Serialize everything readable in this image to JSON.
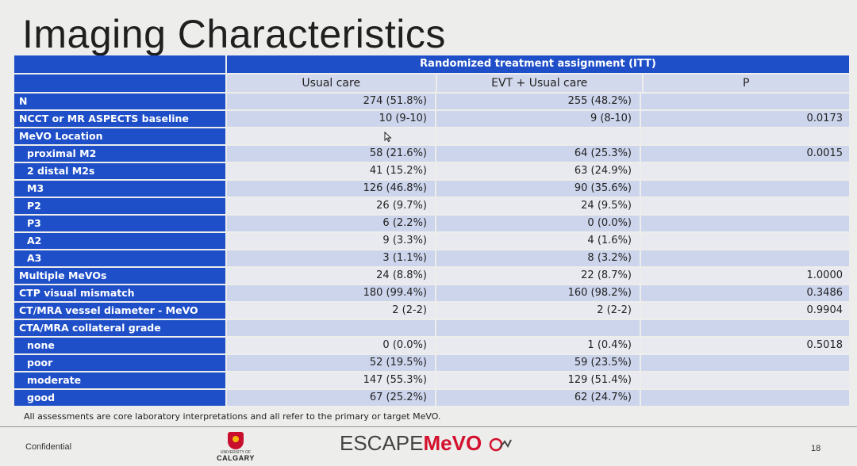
{
  "title": "Imaging Characteristics",
  "table": {
    "group_header": "Randomized treatment assignment (ITT)",
    "columns": [
      "Usual care",
      "EVT + Usual care",
      "P"
    ],
    "rows": [
      {
        "label": "N",
        "usual": "274 (51.8%)",
        "evt": "255 (48.2%)",
        "p": "",
        "indent": false,
        "style": "shaded"
      },
      {
        "label": "NCCT or MR ASPECTS baseline",
        "usual": "10 (9-10)",
        "evt": "9 (8-10)",
        "p": "0.0173",
        "indent": false,
        "style": "shaded"
      },
      {
        "label": "MeVO Location",
        "usual": "",
        "evt": "",
        "p": "",
        "indent": false,
        "style": "plain"
      },
      {
        "label": "proximal M2",
        "usual": "58 (21.6%)",
        "evt": "64 (25.3%)",
        "p": "0.0015",
        "indent": true,
        "style": "shaded"
      },
      {
        "label": "2 distal M2s",
        "usual": "41 (15.2%)",
        "evt": "63 (24.9%)",
        "p": "",
        "indent": true,
        "style": "plain"
      },
      {
        "label": "M3",
        "usual": "126 (46.8%)",
        "evt": "90 (35.6%)",
        "p": "",
        "indent": true,
        "style": "shaded"
      },
      {
        "label": "P2",
        "usual": "26 (9.7%)",
        "evt": "24 (9.5%)",
        "p": "",
        "indent": true,
        "style": "plain"
      },
      {
        "label": "P3",
        "usual": "6 (2.2%)",
        "evt": "0 (0.0%)",
        "p": "",
        "indent": true,
        "style": "shaded"
      },
      {
        "label": "A2",
        "usual": "9 (3.3%)",
        "evt": "4 (1.6%)",
        "p": "",
        "indent": true,
        "style": "plain"
      },
      {
        "label": "A3",
        "usual": "3 (1.1%)",
        "evt": "8 (3.2%)",
        "p": "",
        "indent": true,
        "style": "shaded"
      },
      {
        "label": "Multiple MeVOs",
        "usual": "24 (8.8%)",
        "evt": "22 (8.7%)",
        "p": "1.0000",
        "indent": false,
        "style": "plain"
      },
      {
        "label": "CTP visual mismatch",
        "usual": "180 (99.4%)",
        "evt": "160 (98.2%)",
        "p": "0.3486",
        "indent": false,
        "style": "shaded"
      },
      {
        "label": "CT/MRA vessel diameter - MeVO",
        "usual": "2 (2-2)",
        "evt": "2 (2-2)",
        "p": "0.9904",
        "indent": false,
        "style": "plain"
      },
      {
        "label": "CTA/MRA collateral grade",
        "usual": "",
        "evt": "",
        "p": "",
        "indent": false,
        "style": "shaded"
      },
      {
        "label": "none",
        "usual": "0 (0.0%)",
        "evt": "1 (0.4%)",
        "p": "0.5018",
        "indent": true,
        "style": "plain"
      },
      {
        "label": "poor",
        "usual": "52 (19.5%)",
        "evt": "59 (23.5%)",
        "p": "",
        "indent": true,
        "style": "shaded"
      },
      {
        "label": "moderate",
        "usual": "147 (55.3%)",
        "evt": "129 (51.4%)",
        "p": "",
        "indent": true,
        "style": "plain"
      },
      {
        "label": "good",
        "usual": "67 (25.2%)",
        "evt": "62 (24.7%)",
        "p": "",
        "indent": true,
        "style": "shaded"
      }
    ]
  },
  "footnote": "All assessments are core laboratory interpretations and all refer to the primary or target MeVO.",
  "footer": {
    "confidential": "Confidential",
    "university_of": "UNIVERSITY OF",
    "university_name": "CALGARY",
    "brand_prefix": "ESCAPE",
    "brand_suffix": "MeVO",
    "page_number": "18"
  },
  "colors": {
    "header_blue": "#1f4fc8",
    "shaded_cell": "#cdd5ec",
    "plain_cell": "#e9eaf0",
    "brand_red": "#d3122f"
  }
}
